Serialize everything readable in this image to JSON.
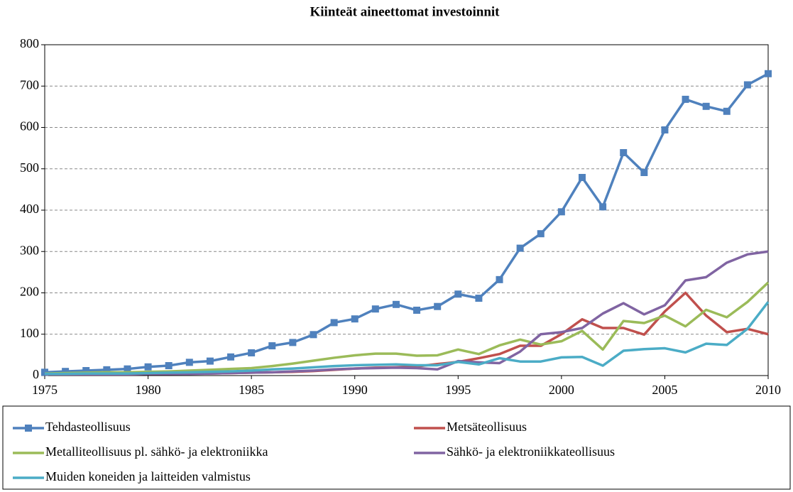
{
  "chart_data": {
    "type": "line",
    "title": "Kiinteät aineettomat investoinnit",
    "x": [
      1975,
      1976,
      1977,
      1978,
      1979,
      1980,
      1981,
      1982,
      1983,
      1984,
      1985,
      1986,
      1987,
      1988,
      1989,
      1990,
      1991,
      1992,
      1993,
      1994,
      1995,
      1996,
      1997,
      1998,
      1999,
      2000,
      2001,
      2002,
      2003,
      2004,
      2005,
      2006,
      2007,
      2008,
      2009,
      2010
    ],
    "xlim": [
      1975,
      2010
    ],
    "xticks": [
      1975,
      1980,
      1985,
      1990,
      1995,
      2000,
      2005,
      2010
    ],
    "ylim": [
      0,
      800
    ],
    "yticks": [
      0,
      100,
      200,
      300,
      400,
      500,
      600,
      700,
      800
    ],
    "grid": true,
    "legend": "bottom",
    "series": [
      {
        "name": "Tehdasteollisuus",
        "color": "#4f81bd",
        "marker": "square",
        "values": [
          8,
          10,
          12,
          14,
          16,
          21,
          24,
          32,
          35,
          45,
          55,
          72,
          80,
          99,
          128,
          137,
          161,
          172,
          158,
          167,
          197,
          187,
          232,
          308,
          343,
          396,
          479,
          408,
          539,
          491,
          594,
          668,
          651,
          639,
          703,
          730
        ]
      },
      {
        "name": "Metsäteollisuus",
        "color": "#c0504d",
        "values": [
          3,
          3,
          3,
          3,
          3,
          4,
          4,
          5,
          5,
          6,
          7,
          8,
          9,
          11,
          14,
          17,
          19,
          20,
          22,
          28,
          33,
          42,
          52,
          72,
          72,
          100,
          136,
          115,
          115,
          99,
          155,
          200,
          145,
          105,
          113,
          100
        ]
      },
      {
        "name": "Metalliteollisuus pl. sähkö- ja elektroniikka",
        "color": "#9bbb59",
        "values": [
          5,
          6,
          7,
          8,
          8,
          9,
          10,
          12,
          14,
          16,
          18,
          23,
          29,
          36,
          43,
          49,
          53,
          53,
          48,
          49,
          63,
          52,
          73,
          87,
          75,
          83,
          108,
          63,
          132,
          127,
          145,
          119,
          159,
          141,
          178,
          225
        ]
      },
      {
        "name": "Sähkö- ja elektroniikkateollisuus",
        "color": "#8064a2",
        "values": [
          3,
          3,
          3,
          3,
          3,
          4,
          4,
          4,
          5,
          6,
          7,
          8,
          10,
          12,
          15,
          17,
          18,
          19,
          18,
          15,
          35,
          32,
          30,
          58,
          100,
          105,
          115,
          150,
          175,
          148,
          170,
          230,
          238,
          273,
          293,
          300
        ]
      },
      {
        "name": "Muiden koneiden ja laitteiden valmistus",
        "color": "#4bacc6",
        "values": [
          4,
          4,
          5,
          5,
          5,
          6,
          7,
          8,
          9,
          10,
          12,
          15,
          17,
          20,
          23,
          25,
          26,
          27,
          25,
          25,
          33,
          27,
          42,
          34,
          34,
          44,
          45,
          24,
          60,
          64,
          66,
          56,
          77,
          74,
          113,
          178
        ]
      }
    ]
  }
}
